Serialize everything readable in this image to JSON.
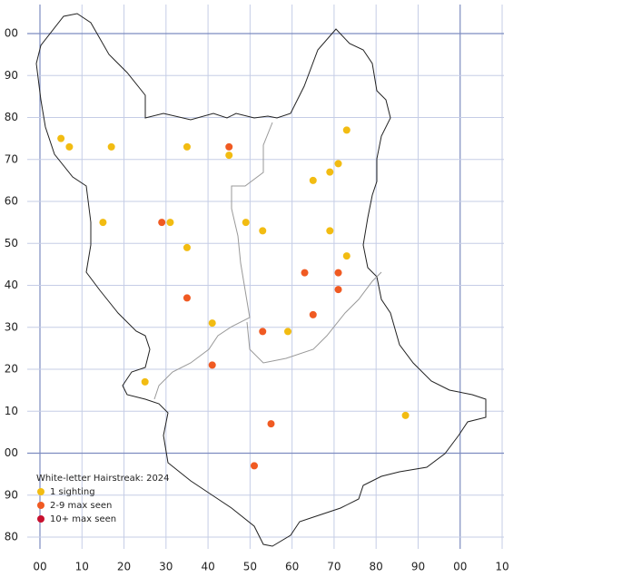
{
  "chart_data": {
    "type": "scatter",
    "legend_title": "White-letter Hairstreak:  2024",
    "xlim": [
      0,
      110
    ],
    "ylim": [
      -20,
      100
    ],
    "xticks": [
      {
        "value": 0,
        "label": "00"
      },
      10,
      20,
      30,
      40,
      50,
      60,
      70,
      80,
      90,
      {
        "value": 100,
        "label": "00"
      },
      {
        "value": 110,
        "label": "10"
      }
    ],
    "yticks": [
      {
        "value": 100,
        "label": "00"
      },
      90,
      80,
      70,
      60,
      50,
      40,
      30,
      20,
      10,
      {
        "value": 0,
        "label": "00"
      },
      {
        "value": -10,
        "label": "90"
      },
      {
        "value": -20,
        "label": "80"
      }
    ],
    "grid": true,
    "series": [
      {
        "name": "1 sighting",
        "color": "#f2bc12",
        "x": [
          5,
          7,
          17,
          35,
          45,
          73,
          71,
          69,
          65,
          15,
          31,
          49,
          53,
          69,
          35,
          73,
          41,
          59,
          25,
          87
        ],
        "values": [
          75,
          73,
          73,
          73,
          71,
          77,
          69,
          67,
          65,
          55,
          55,
          55,
          53,
          53,
          49,
          47,
          31,
          29,
          17,
          9
        ]
      },
      {
        "name": "2-9 max seen",
        "color": "#f05a22",
        "x": [
          45,
          29,
          63,
          71,
          71,
          35,
          65,
          53,
          41,
          55,
          51
        ],
        "values": [
          73,
          55,
          43,
          43,
          39,
          37,
          33,
          29,
          21,
          7,
          -3
        ]
      },
      {
        "name": "10+ max seen",
        "color": "#c8102e",
        "x": [],
        "values": []
      }
    ]
  }
}
